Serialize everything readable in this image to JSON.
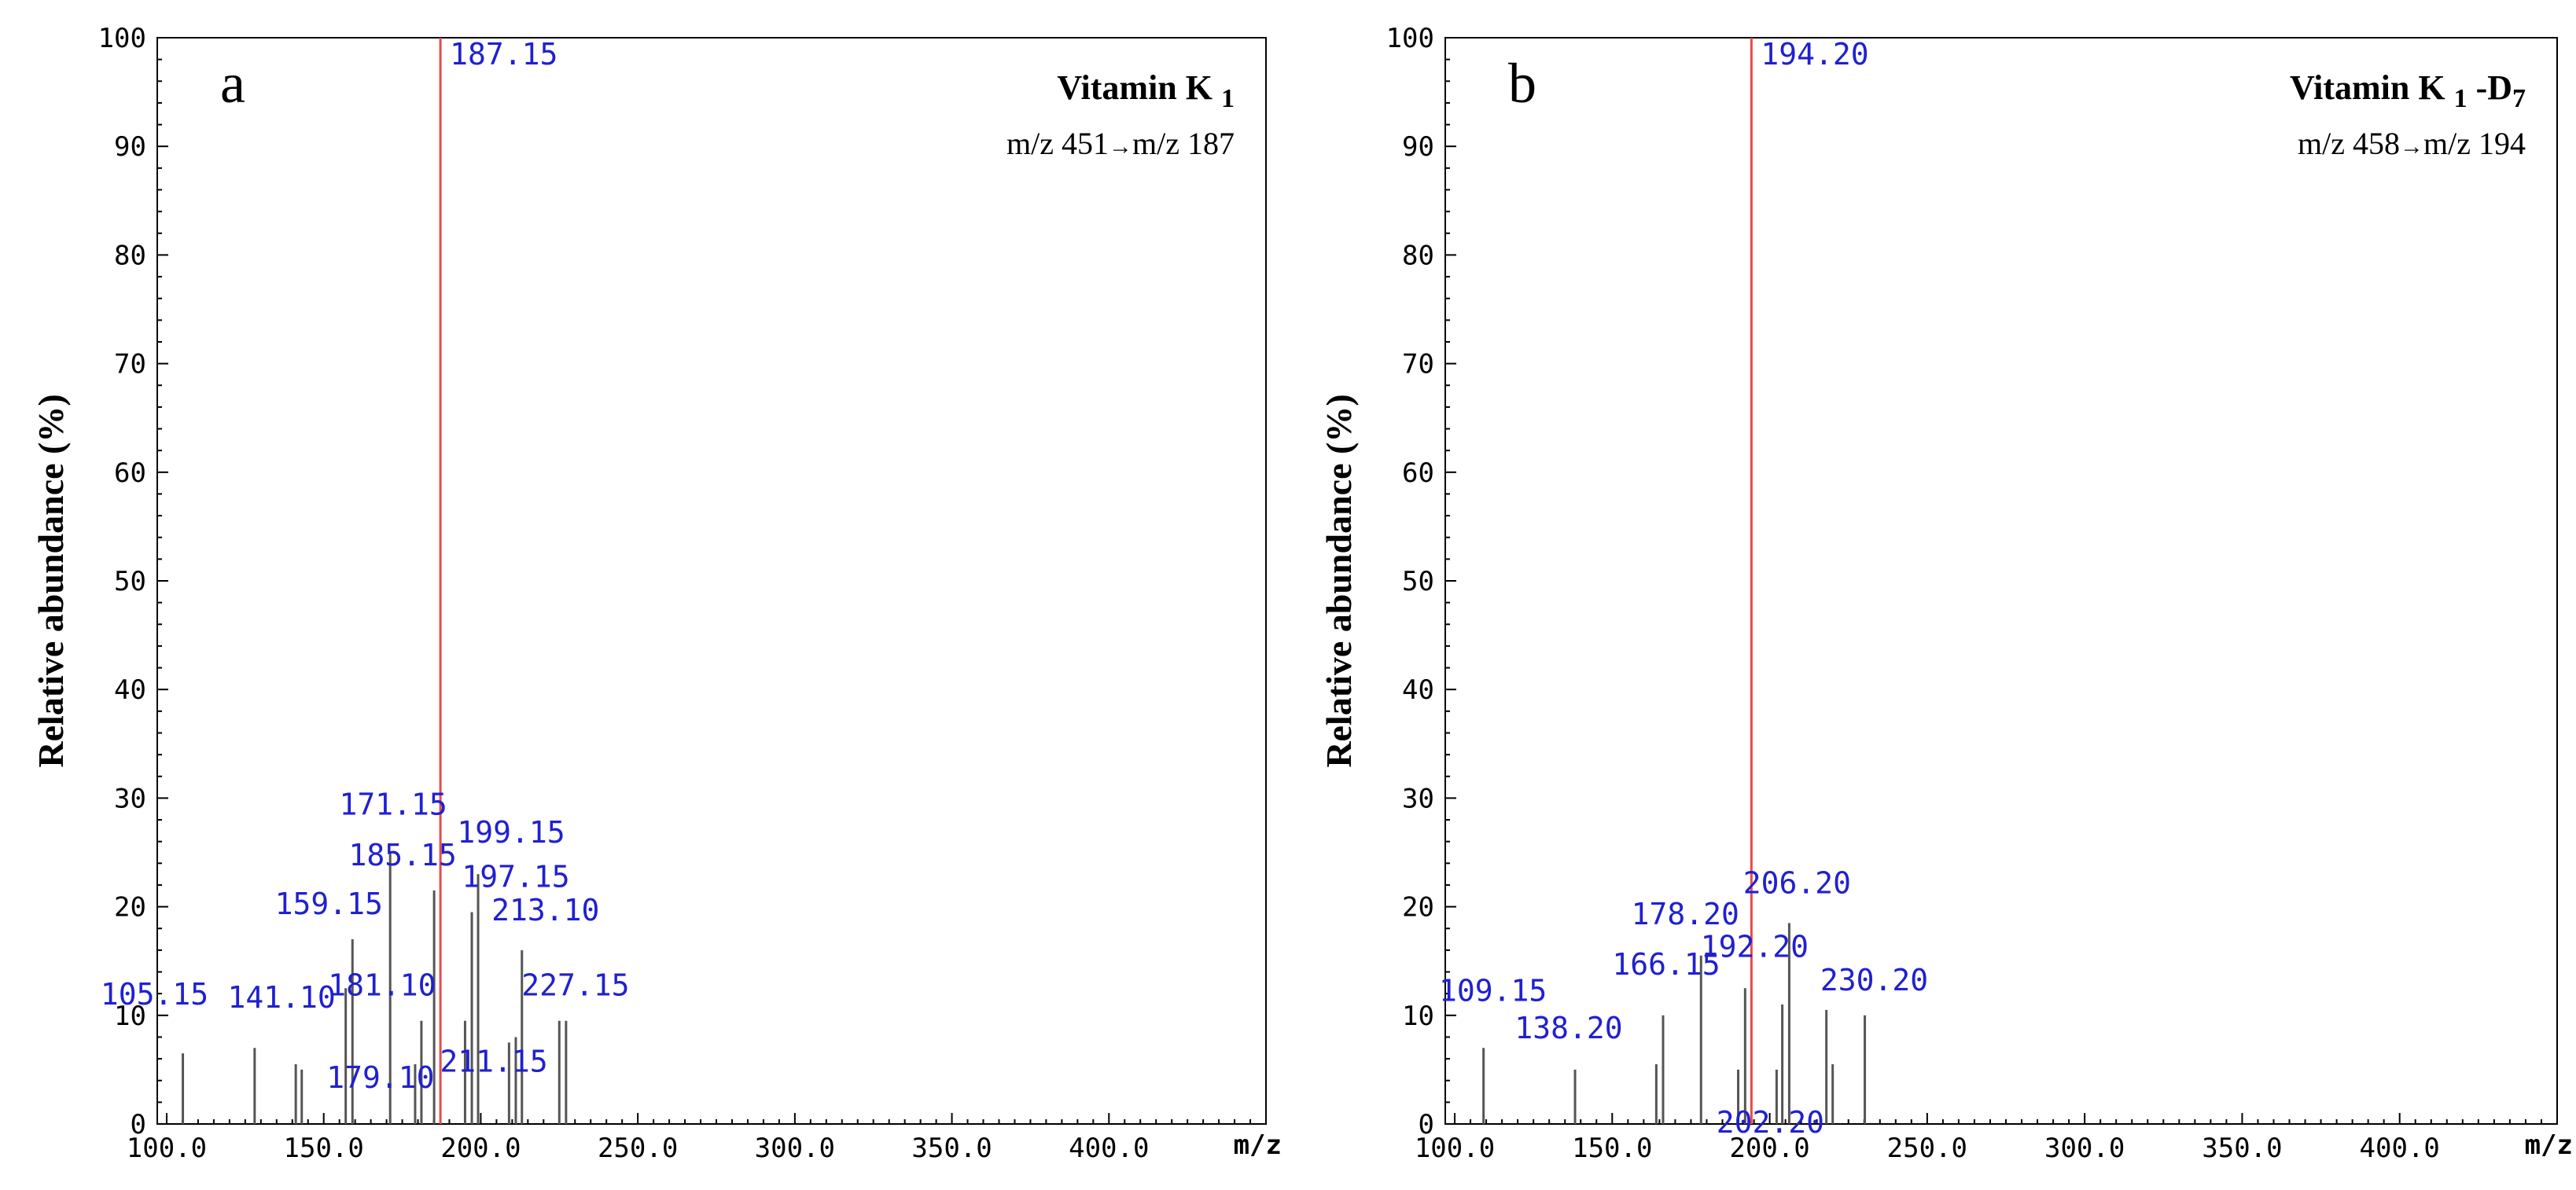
{
  "chart_data": [
    {
      "type": "bar",
      "panel_letter": "a",
      "compound_name": "Vitamin K",
      "compound_sub": "1",
      "compound_suffix": "",
      "compound_suffix_sub": "",
      "transition_left": "m/z 451",
      "transition_right": "m/z 187",
      "ylabel": "Relative abundance (%)",
      "xunit": "m/z",
      "x_ticks": [
        "100.0",
        "150.0",
        "200.0",
        "250.0",
        "300.0",
        "350.0",
        "400.0"
      ],
      "x_tick_values": [
        100,
        150,
        200,
        250,
        300,
        350,
        400
      ],
      "y_ticks": [
        "0",
        "10",
        "20",
        "30",
        "40",
        "50",
        "60",
        "70",
        "80",
        "90",
        "100"
      ],
      "xlim": [
        97,
        450
      ],
      "ylim": [
        0,
        100
      ],
      "base_peak": {
        "mz": 187.15,
        "label": "187.15",
        "value": 100
      },
      "peaks": [
        {
          "mz": 105.15,
          "value": 6.5,
          "label": "105.15"
        },
        {
          "mz": 128.0,
          "value": 7.0,
          "label": ""
        },
        {
          "mz": 141.1,
          "value": 5.5,
          "label": "141.10"
        },
        {
          "mz": 143.0,
          "value": 5.0,
          "label": ""
        },
        {
          "mz": 157.0,
          "value": 12.5,
          "label": ""
        },
        {
          "mz": 159.15,
          "value": 17.0,
          "label": "159.15"
        },
        {
          "mz": 171.15,
          "value": 25.0,
          "label": "171.15"
        },
        {
          "mz": 179.1,
          "value": 5.5,
          "label": "179.10"
        },
        {
          "mz": 181.1,
          "value": 9.5,
          "label": "181.10"
        },
        {
          "mz": 185.15,
          "value": 21.5,
          "label": "185.15"
        },
        {
          "mz": 195.0,
          "value": 9.5,
          "label": ""
        },
        {
          "mz": 197.15,
          "value": 19.5,
          "label": "197.15"
        },
        {
          "mz": 199.15,
          "value": 23.0,
          "label": "199.15"
        },
        {
          "mz": 209.0,
          "value": 7.5,
          "label": ""
        },
        {
          "mz": 211.15,
          "value": 8.0,
          "label": "211.15"
        },
        {
          "mz": 213.1,
          "value": 16.0,
          "label": "213.10"
        },
        {
          "mz": 225.0,
          "value": 9.5,
          "label": ""
        },
        {
          "mz": 227.15,
          "value": 9.5,
          "label": "227.15"
        }
      ]
    },
    {
      "type": "bar",
      "panel_letter": "b",
      "compound_name": "Vitamin K",
      "compound_sub": "1",
      "compound_suffix": "-D",
      "compound_suffix_sub": "7",
      "transition_left": "m/z 458",
      "transition_right": "m/z 194",
      "ylabel": "Relative abundance (%)",
      "xunit": "m/z",
      "x_ticks": [
        "100.0",
        "150.0",
        "200.0",
        "250.0",
        "300.0",
        "350.0",
        "400.0"
      ],
      "x_tick_values": [
        100,
        150,
        200,
        250,
        300,
        350,
        400
      ],
      "y_ticks": [
        "0",
        "10",
        "20",
        "30",
        "40",
        "50",
        "60",
        "70",
        "80",
        "90",
        "100"
      ],
      "xlim": [
        97,
        450
      ],
      "ylim": [
        0,
        100
      ],
      "base_peak": {
        "mz": 194.2,
        "label": "194.20",
        "value": 100
      },
      "peaks": [
        {
          "mz": 109.15,
          "value": 7.0,
          "label": "109.15"
        },
        {
          "mz": 138.2,
          "value": 5.0,
          "label": "138.20"
        },
        {
          "mz": 164.0,
          "value": 5.5,
          "label": ""
        },
        {
          "mz": 166.15,
          "value": 10.0,
          "label": "166.15"
        },
        {
          "mz": 178.2,
          "value": 15.5,
          "label": "178.20"
        },
        {
          "mz": 190.0,
          "value": 5.0,
          "label": ""
        },
        {
          "mz": 192.2,
          "value": 12.5,
          "label": "192.20"
        },
        {
          "mz": 204.0,
          "value": 11.0,
          "label": ""
        },
        {
          "mz": 202.2,
          "value": 5.0,
          "label": "202.20"
        },
        {
          "mz": 206.2,
          "value": 18.5,
          "label": "206.20"
        },
        {
          "mz": 218.0,
          "value": 10.5,
          "label": ""
        },
        {
          "mz": 220.0,
          "value": 5.5,
          "label": ""
        },
        {
          "mz": 230.2,
          "value": 10.0,
          "label": "230.20"
        }
      ]
    }
  ]
}
